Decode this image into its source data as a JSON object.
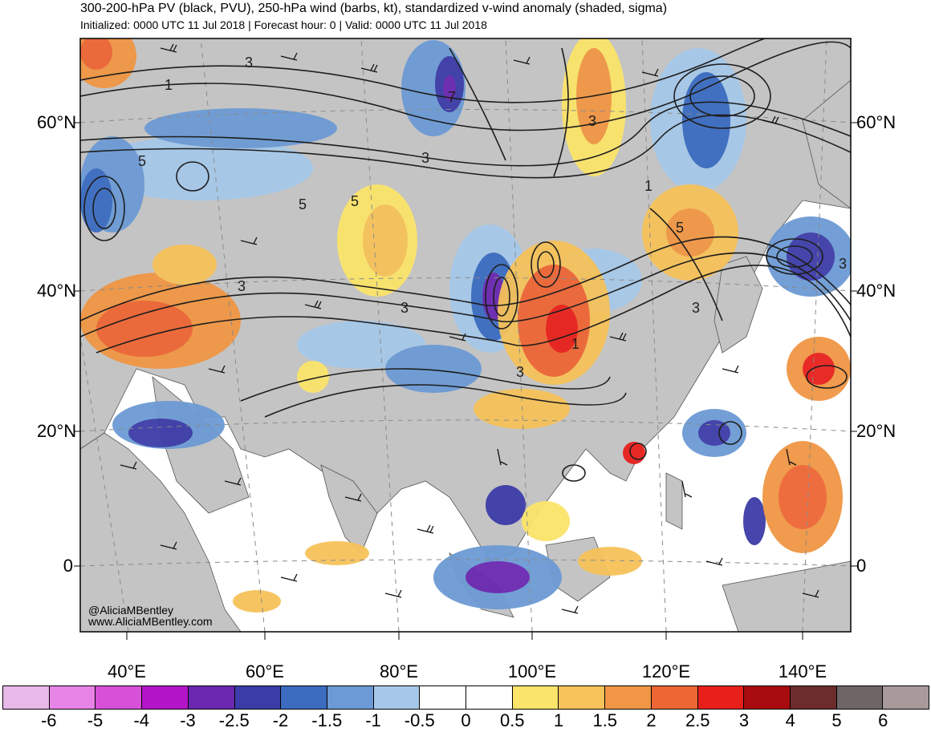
{
  "title": "300-200-hPa PV (black, PVU), 250-hPa wind (barbs, kt), standardized v-wind anomaly (shaded, sigma)",
  "subtitle": "Initialized: 0000 UTC 11 Jul 2018 | Forecast hour: 0 | Valid: 0000 UTC 11 Jul 2018",
  "lat_labels": [
    "60°N",
    "40°N",
    "20°N",
    "0"
  ],
  "lon_labels": [
    "40°E",
    "60°E",
    "80°E",
    "100°E",
    "120°E",
    "140°E"
  ],
  "credit": {
    "handle": "@AliciaMBentley",
    "site": "www.AliciaMBentley.com"
  },
  "contour_labels": [
    "3",
    "1",
    "7",
    "3",
    "3",
    "5",
    "5",
    "5",
    "3",
    "3",
    "1",
    "5",
    "3",
    "3",
    "1",
    "3"
  ],
  "colorbar": {
    "tick_labels": [
      "-6",
      "-5",
      "-4",
      "-3",
      "-2.5",
      "-2",
      "-1.5",
      "-1",
      "-0.5",
      "0",
      "0.5",
      "1",
      "1.5",
      "2",
      "2.5",
      "3",
      "4",
      "5",
      "6"
    ],
    "colors": [
      "#e8b8e8",
      "#e884e8",
      "#d850d8",
      "#b414c8",
      "#6a28b0",
      "#3c3ca8",
      "#3c6cc0",
      "#6c9ad4",
      "#a6c8e8",
      "#ffffff",
      "#ffffff",
      "#fbe46a",
      "#f6c25a",
      "#f09644",
      "#ee6634",
      "#e8201c",
      "#a80c10",
      "#6c2c2c",
      "#6e6666",
      "#a89a9a"
    ]
  },
  "map_colors": {
    "land": "#c4c4c4",
    "ocean": "#ffffff",
    "contour": "#1e1e1e",
    "grid": "#8a8a8a"
  }
}
